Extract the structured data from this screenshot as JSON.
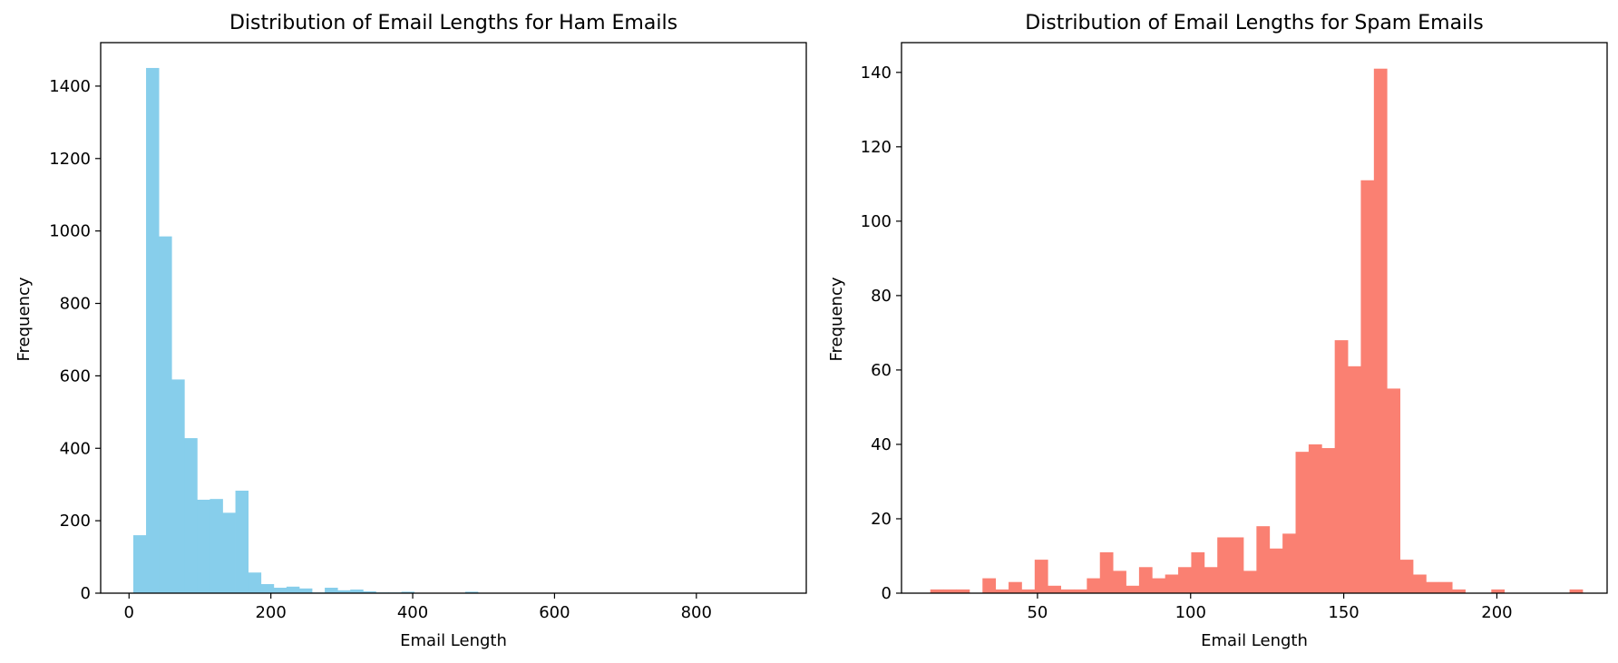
{
  "chart_data": [
    {
      "type": "bar",
      "title": "Distribution of Email Lengths for Ham Emails",
      "xlabel": "Email Length",
      "ylabel": "Frequency",
      "color": "#87CEEB",
      "xlim": [
        -40,
        955
      ],
      "ylim": [
        0,
        1520
      ],
      "xticks": [
        0,
        200,
        400,
        600,
        800
      ],
      "yticks": [
        0,
        200,
        400,
        600,
        800,
        1000,
        1200,
        1400
      ],
      "bin_start": 6,
      "bin_width": 18,
      "values": [
        160,
        1450,
        985,
        590,
        428,
        258,
        260,
        222,
        283,
        57,
        25,
        15,
        18,
        13,
        2,
        15,
        8,
        10,
        5,
        2,
        2,
        4,
        1,
        1,
        1,
        1,
        4,
        1,
        0,
        1,
        0,
        0,
        0,
        0,
        0,
        0,
        0,
        0,
        0,
        0,
        0,
        0,
        0,
        0,
        0,
        0,
        0,
        0,
        0,
        1
      ]
    },
    {
      "type": "bar",
      "title": "Distribution of Email Lengths for Spam Emails",
      "xlabel": "Email Length",
      "ylabel": "Frequency",
      "color": "#FA8072",
      "xlim": [
        5.6,
        236
      ],
      "ylim": [
        0,
        148
      ],
      "xticks": [
        50,
        100,
        150,
        200
      ],
      "yticks": [
        0,
        20,
        40,
        60,
        80,
        100,
        120,
        140
      ],
      "bin_start": 15,
      "bin_width": 4.26,
      "values": [
        1,
        1,
        1,
        0,
        4,
        1,
        3,
        1,
        9,
        2,
        1,
        1,
        4,
        11,
        6,
        2,
        7,
        4,
        5,
        7,
        11,
        7,
        15,
        15,
        6,
        18,
        12,
        16,
        38,
        40,
        39,
        68,
        61,
        111,
        141,
        55,
        9,
        5,
        3,
        3,
        1,
        0,
        0,
        1,
        0,
        0,
        0,
        0,
        0,
        1
      ]
    }
  ]
}
